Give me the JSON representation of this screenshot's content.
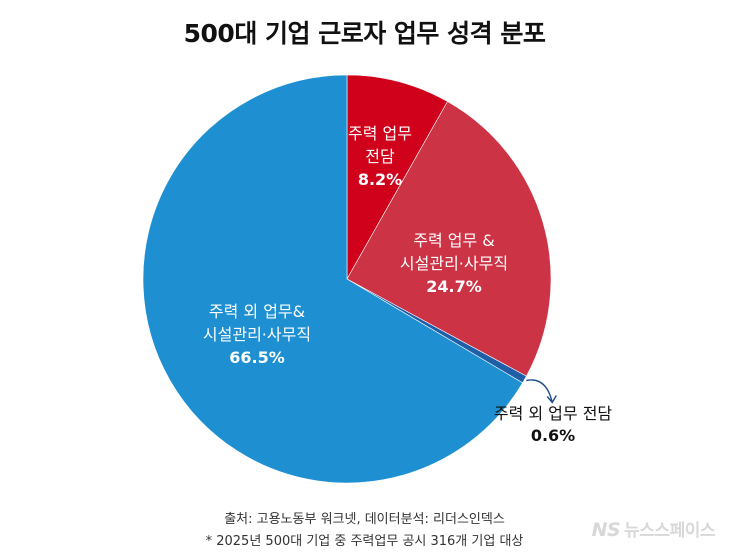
{
  "chart_data": {
    "type": "pie",
    "title": "500대 기업 근로자 업무 성격 분포",
    "slices": [
      {
        "label_lines": [
          "주력 업무",
          "전담"
        ],
        "value": 8.2,
        "value_label": "8.2%",
        "color": "#d0021b",
        "label_color": "#ffffff"
      },
      {
        "label_lines": [
          "주력 업무 &",
          "시설관리·사무직"
        ],
        "value": 24.7,
        "value_label": "24.7%",
        "color": "#cc3344",
        "label_color": "#ffffff"
      },
      {
        "label_lines": [
          "주력 외 업무 전담"
        ],
        "value": 0.6,
        "value_label": "0.6%",
        "color": "#1f5fa8",
        "label_color": "#111111"
      },
      {
        "label_lines": [
          "주력 외 업무&",
          "시설관리·사무직"
        ],
        "value": 66.5,
        "value_label": "66.5%",
        "color": "#1e90d2",
        "label_color": "#ffffff"
      }
    ]
  },
  "footer": {
    "source": "출처: 고용노동부 워크넷, 데이터분석: 리더스인덱스",
    "note": "* 2025년 500대 기업 중 주력업무 공시 316개 기업 대상"
  },
  "watermark": {
    "logo": "NS",
    "text": "뉴스스페이스"
  }
}
